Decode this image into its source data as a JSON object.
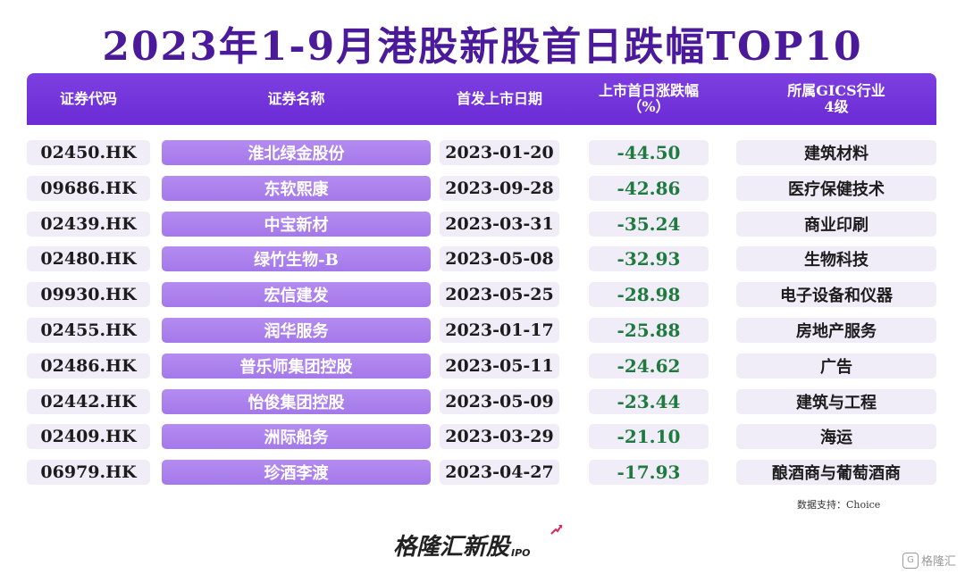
{
  "title": "2023年1-9月港股新股首日跌幅TOP10",
  "source": "数据支持：Choice",
  "logo": {
    "text": "格隆汇新股",
    "sub": "IPO"
  },
  "watermark": {
    "badge": "G",
    "text": "格隆汇"
  },
  "colors": {
    "header": "#6b2bd6",
    "name_cell": "#a478ea",
    "negative": "#1f7a3f",
    "title": "#4a1a9b"
  },
  "chart_data": {
    "type": "table",
    "title": "2023年1-9月港股新股首日跌幅TOP10",
    "columns": [
      "证券代码",
      "证券名称",
      "首发上市日期",
      "上市首日涨跌幅（%）",
      "所属GICS行业4级"
    ],
    "header_lines": [
      [
        "证券代码"
      ],
      [
        "证券名称"
      ],
      [
        "首发上市日期"
      ],
      [
        "上市首日涨跌幅",
        "（%）"
      ],
      [
        "所属GICS行业",
        "4级"
      ]
    ],
    "rows": [
      {
        "code": "02450.HK",
        "name": "淮北绿金股份",
        "date": "2023-01-20",
        "change": "-44.50",
        "industry": "建筑材料"
      },
      {
        "code": "09686.HK",
        "name": "东软熙康",
        "date": "2023-09-28",
        "change": "-42.86",
        "industry": "医疗保健技术"
      },
      {
        "code": "02439.HK",
        "name": "中宝新材",
        "date": "2023-03-31",
        "change": "-35.24",
        "industry": "商业印刷"
      },
      {
        "code": "02480.HK",
        "name": "绿竹生物-B",
        "date": "2023-05-08",
        "change": "-32.93",
        "industry": "生物科技"
      },
      {
        "code": "09930.HK",
        "name": "宏信建发",
        "date": "2023-05-25",
        "change": "-28.98",
        "industry": "电子设备和仪器"
      },
      {
        "code": "02455.HK",
        "name": "润华服务",
        "date": "2023-01-17",
        "change": "-25.88",
        "industry": "房地产服务"
      },
      {
        "code": "02486.HK",
        "name": "普乐师集团控股",
        "date": "2023-05-11",
        "change": "-24.62",
        "industry": "广告"
      },
      {
        "code": "02442.HK",
        "name": "怡俊集团控股",
        "date": "2023-05-09",
        "change": "-23.44",
        "industry": "建筑与工程"
      },
      {
        "code": "02409.HK",
        "name": "洲际船务",
        "date": "2023-03-29",
        "change": "-21.10",
        "industry": "海运"
      },
      {
        "code": "06979.HK",
        "name": "珍酒李渡",
        "date": "2023-04-27",
        "change": "-17.93",
        "industry": "酿酒商与葡萄酒商"
      }
    ]
  }
}
